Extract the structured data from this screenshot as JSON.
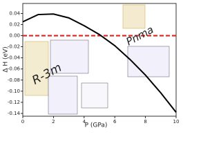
{
  "chart_data": {
    "type": "line",
    "xlabel": "P (GPa)",
    "ylabel": "Δ H (eV)",
    "x": [
      0,
      1,
      2,
      3,
      4,
      5,
      6,
      7,
      8,
      9,
      10
    ],
    "series": [
      {
        "color": "#000000",
        "values": [
          0.025,
          0.038,
          0.039,
          0.032,
          0.018,
          0.002,
          -0.018,
          -0.043,
          -0.071,
          -0.103,
          -0.138
        ]
      }
    ],
    "xlim": [
      0,
      10
    ],
    "xticks": [
      0,
      2,
      4,
      6,
      8,
      10
    ],
    "ylim": [
      -0.145,
      0.058
    ],
    "yticks": [
      0.04,
      0.02,
      {
        "value": 0,
        "label": "0.00"
      },
      -0.02,
      -0.04,
      -0.06,
      -0.08,
      {
        "value": -0.1,
        "label": "-0.10"
      },
      -0.12,
      -0.14
    ],
    "hline": {
      "value": 0,
      "color": "#e02020"
    },
    "annotations": [
      {
        "text": "R-3m",
        "color": "#e02020"
      },
      {
        "text": "Pnma",
        "color": "#000000"
      }
    ]
  }
}
